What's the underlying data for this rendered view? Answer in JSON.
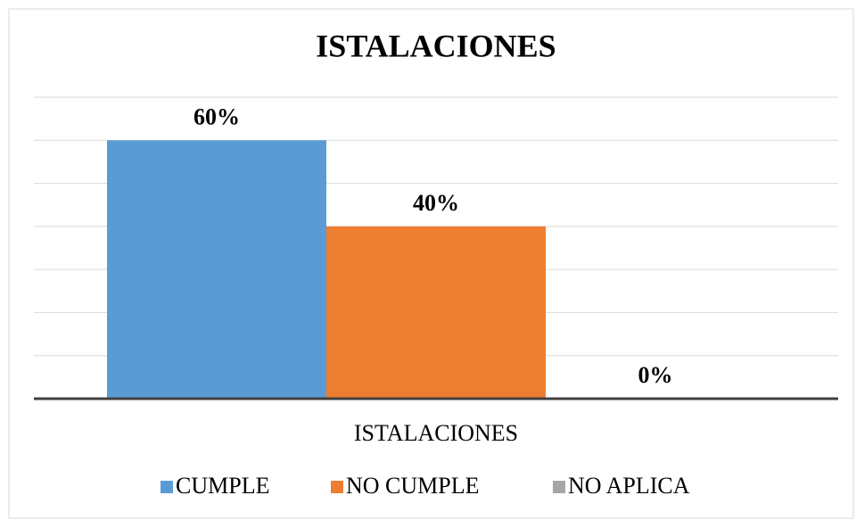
{
  "chart_data": {
    "type": "bar",
    "title": "ISTALACIONES",
    "categories": [
      "ISTALACIONES"
    ],
    "series": [
      {
        "name": "CUMPLE",
        "color": "#5b9bd5",
        "values": [
          60
        ],
        "value_labels": [
          "60%"
        ]
      },
      {
        "name": "NO CUMPLE",
        "color": "#ed7d31",
        "values": [
          40
        ],
        "value_labels": [
          "40%"
        ]
      },
      {
        "name": "NO APLICA",
        "color": "#a5a5a5",
        "values": [
          0
        ],
        "value_labels": [
          "0%"
        ]
      }
    ],
    "ylim": [
      0,
      70
    ],
    "yticks": [
      0,
      10,
      20,
      30,
      40,
      50,
      60,
      70
    ],
    "grid": true,
    "legend": "bottom"
  }
}
